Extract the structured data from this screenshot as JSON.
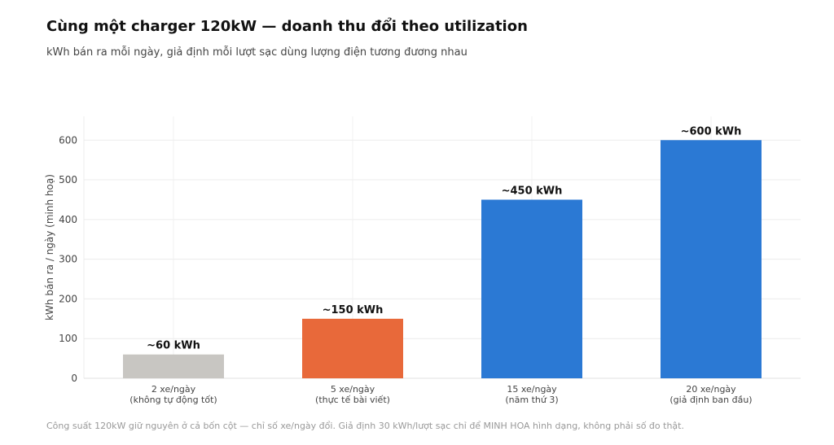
{
  "chart_data": {
    "type": "bar",
    "title": "Cùng một charger 120kW — doanh thu đổi theo utilization",
    "subtitle": "kWh bán ra mỗi ngày, giả định mỗi lượt sạc dùng lượng điện tương đương nhau",
    "ylabel": "kWh bán ra / ngày (minh hoạ)",
    "xlabel": "",
    "ylim": [
      0,
      660
    ],
    "yticks": [
      0,
      100,
      200,
      300,
      400,
      500,
      600
    ],
    "grid": true,
    "categories": [
      [
        "2 xe/ngày",
        "(không tự động tốt)"
      ],
      [
        "5 xe/ngày",
        "(thực tế bài viết)"
      ],
      [
        "15 xe/ngày",
        "(năm thứ 3)"
      ],
      [
        "20 xe/ngày",
        "(giả định ban đầu)"
      ]
    ],
    "values": [
      60,
      150,
      450,
      600
    ],
    "data_labels": [
      "~60 kWh",
      "~150 kWh",
      "~450 kWh",
      "~600 kWh"
    ],
    "colors": [
      "#c8c6c2",
      "#e8693a",
      "#2b79d4",
      "#2b79d4"
    ],
    "footnote": "Công suất 120kW giữ nguyên ở cả bốn cột — chỉ số xe/ngày đổi. Giả định 30 kWh/lượt sạc chỉ để MINH HOA hình dạng, không phải số đo thật."
  }
}
